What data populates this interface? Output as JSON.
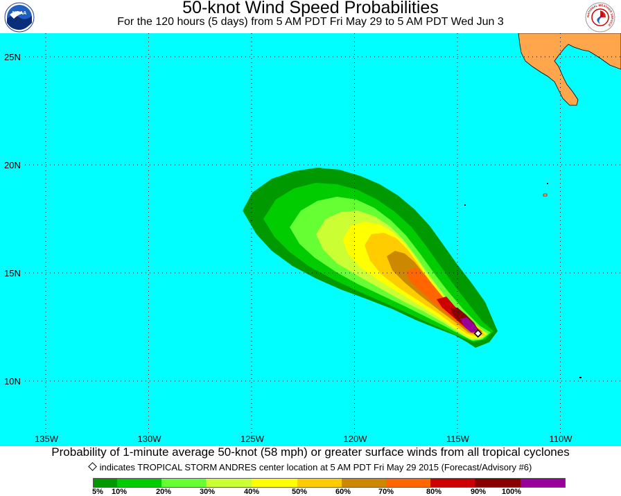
{
  "header": {
    "title": "50-knot Wind Speed Probabilities",
    "subtitle": "For the 120 hours (5 days) from 5 AM PDT Fri May 29 to 5 AM PDT Wed Jun 3",
    "left_logo_text": "NOAA",
    "right_logo_text": "NATIONAL WEATHER SERVICE"
  },
  "map": {
    "ocean_color": "#00ffff",
    "land_color": "#ffa64d",
    "lat_labels": [
      "25N",
      "20N",
      "15N",
      "10N"
    ],
    "lon_labels": [
      "135W",
      "130W",
      "125W",
      "120W",
      "115W",
      "110W"
    ],
    "storm_center": {
      "lat": 12.2,
      "lon": -114.0
    }
  },
  "caption": "Probability of 1-minute average 50-knot (58 mph) or greater surface winds from all tropical cyclones",
  "note": "indicates TROPICAL STORM ANDRES center location at 5 AM PDT Fri May 29 2015 (Forecast/Advisory #6)",
  "legend": {
    "colors": [
      "#009900",
      "#00cc00",
      "#66ff33",
      "#ccff33",
      "#ffff00",
      "#ffcc00",
      "#cc8800",
      "#ff6600",
      "#cc0000",
      "#880000",
      "#990099"
    ],
    "labels": [
      "5%",
      "10%",
      "20%",
      "30%",
      "40%",
      "50%",
      "60%",
      "70%",
      "80%",
      "90%",
      "100%"
    ]
  }
}
